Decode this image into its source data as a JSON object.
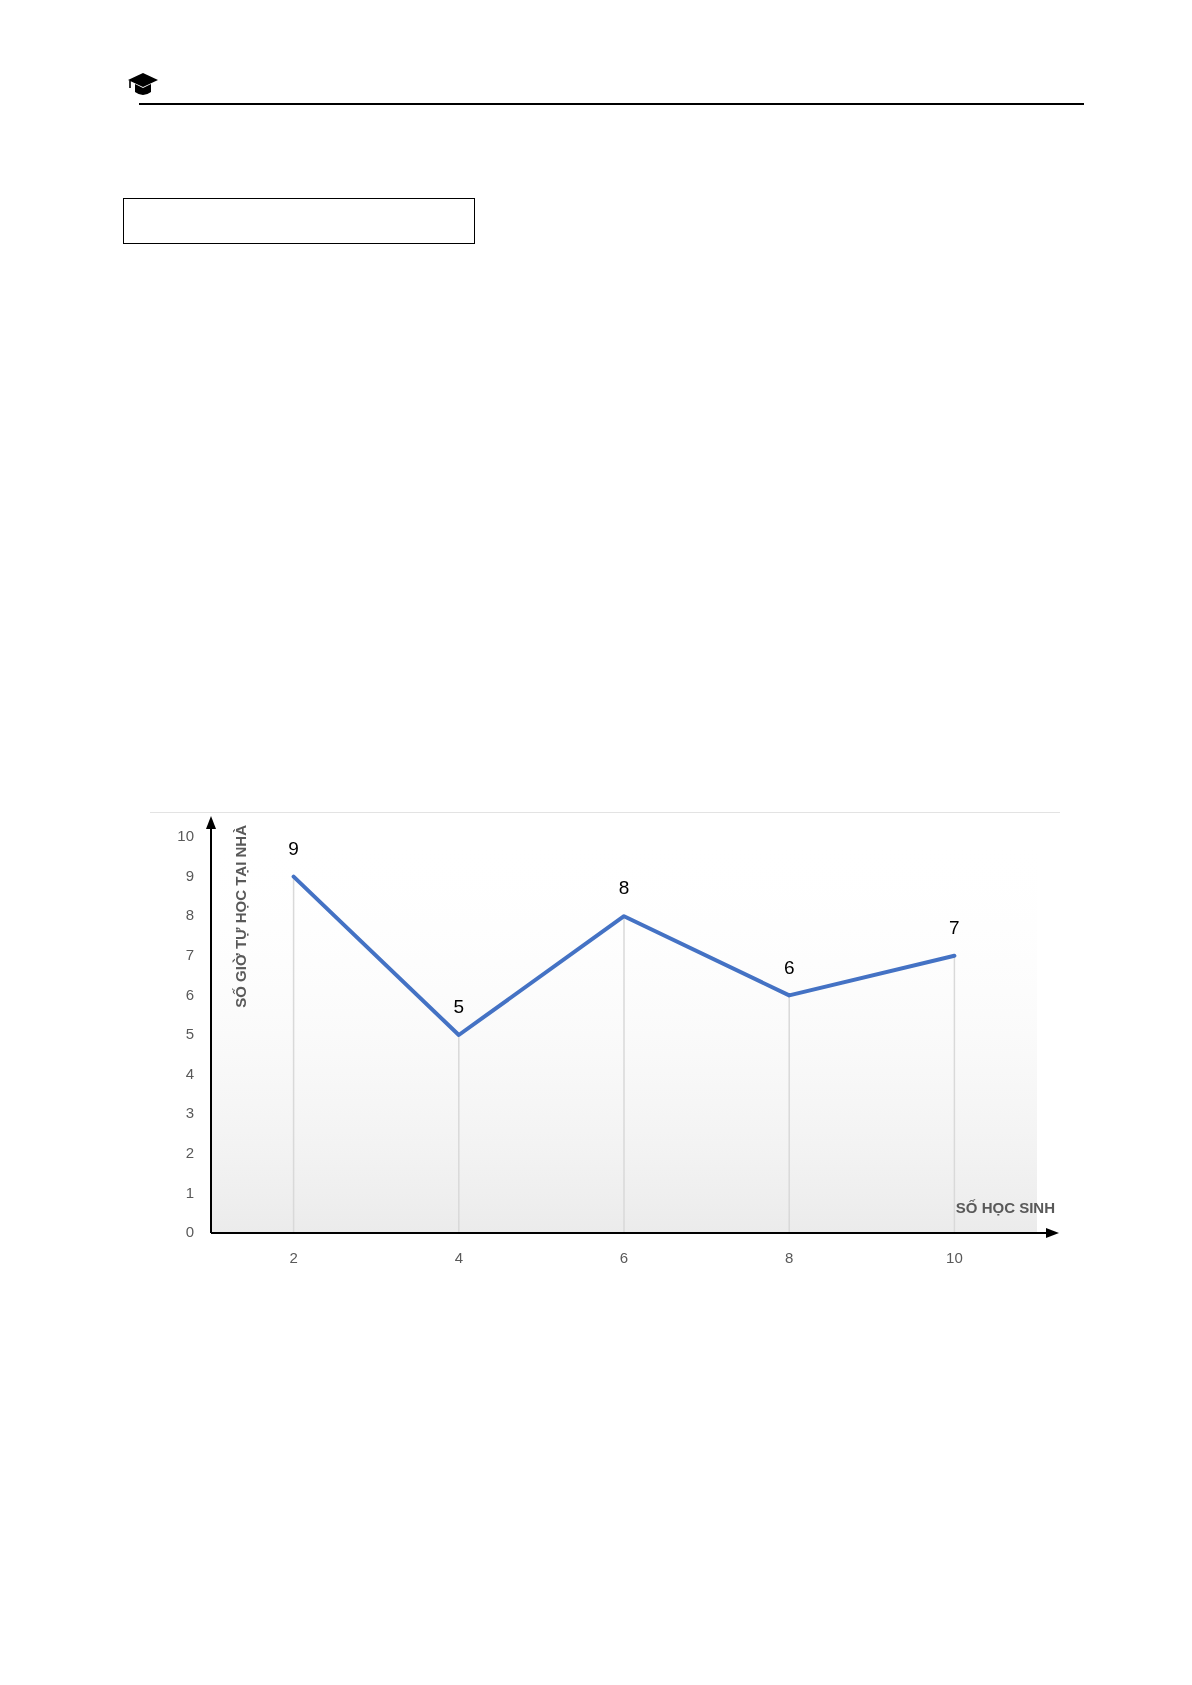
{
  "chart_data": {
    "type": "line",
    "xlabel": "SỐ HỌC SINH",
    "ylabel": "SỐ GIỜ TỰ HỌC TẠI NHÀ",
    "categories": [
      "2",
      "4",
      "6",
      "8",
      "10"
    ],
    "values": [
      9,
      5,
      8,
      6,
      7
    ],
    "color": "#4472c4",
    "ylim": [
      0,
      10
    ],
    "yticks": [
      0,
      1,
      2,
      3,
      4,
      5,
      6,
      7,
      8,
      9,
      10
    ],
    "grid": "x",
    "marker": "none",
    "line_style": "solid",
    "data_labels": true
  }
}
